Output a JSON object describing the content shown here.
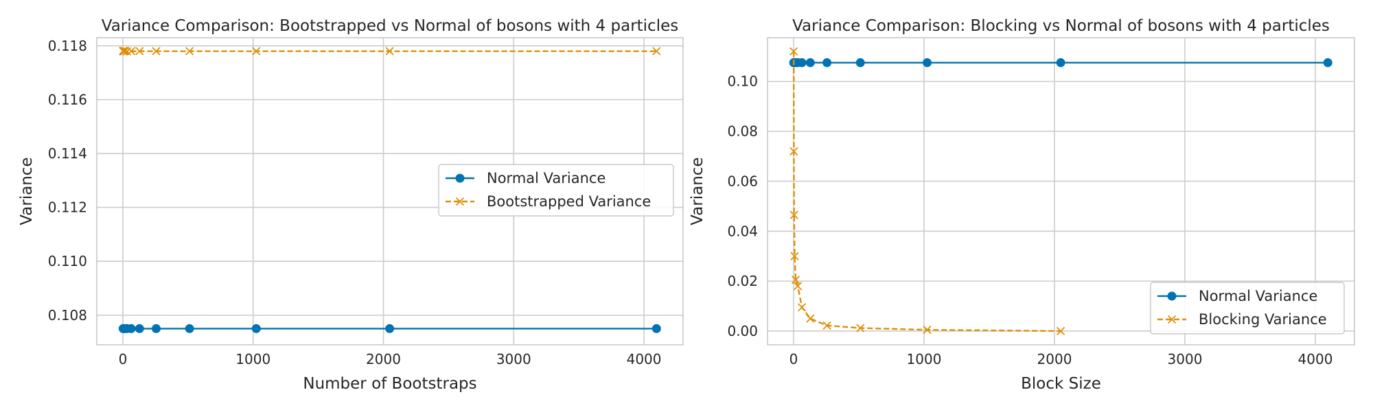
{
  "colors": {
    "normal": "#0173b2",
    "alt": "#de8f05",
    "grid": "#cccccc",
    "frame": "#c8c8c8",
    "background": "#ffffff"
  },
  "chart_data": [
    {
      "type": "line",
      "title": "Variance Comparison: Bootstrapped vs Normal of bosons with 4 particles",
      "xlabel": "Number of Bootstraps",
      "ylabel": "Variance",
      "xlim": [
        -200,
        4300
      ],
      "ylim": [
        0.1069,
        0.1183
      ],
      "xticks": [
        0,
        1000,
        2000,
        3000,
        4000
      ],
      "xtick_labels": [
        "0",
        "1000",
        "2000",
        "3000",
        "4000"
      ],
      "yticks": [
        0.108,
        0.11,
        0.112,
        0.114,
        0.116,
        0.118
      ],
      "ytick_labels": [
        "0.108",
        "0.110",
        "0.112",
        "0.114",
        "0.116",
        "0.118"
      ],
      "grid": true,
      "legend_position": "center-right",
      "series": [
        {
          "name": "Normal Variance",
          "style": "solid",
          "marker": "circle",
          "color": "#0173b2",
          "x": [
            2,
            4,
            8,
            16,
            32,
            64,
            128,
            256,
            512,
            1024,
            2048,
            4096
          ],
          "y": [
            0.1075,
            0.1075,
            0.1075,
            0.1075,
            0.1075,
            0.1075,
            0.1075,
            0.1075,
            0.1075,
            0.1075,
            0.1075,
            0.1075
          ]
        },
        {
          "name": "Bootstrapped Variance",
          "style": "dashed",
          "marker": "x",
          "color": "#de8f05",
          "x": [
            2,
            4,
            8,
            16,
            32,
            64,
            128,
            256,
            512,
            1024,
            2048,
            4096
          ],
          "y": [
            0.11781,
            0.11779,
            0.1178,
            0.11781,
            0.11779,
            0.1178,
            0.1178,
            0.1178,
            0.1178,
            0.1178,
            0.1178,
            0.1178
          ]
        }
      ]
    },
    {
      "type": "line",
      "title": "Variance Comparison: Blocking vs Normal of bosons with 4 particles",
      "xlabel": "Block Size",
      "ylabel": "Variance",
      "xlim": [
        -200,
        4300
      ],
      "ylim": [
        -0.0055,
        0.1175
      ],
      "xticks": [
        0,
        1000,
        2000,
        3000,
        4000
      ],
      "xtick_labels": [
        "0",
        "1000",
        "2000",
        "3000",
        "4000"
      ],
      "yticks": [
        0.0,
        0.02,
        0.04,
        0.06,
        0.08,
        0.1
      ],
      "ytick_labels": [
        "0.00",
        "0.02",
        "0.04",
        "0.06",
        "0.08",
        "0.10"
      ],
      "grid": true,
      "legend_position": "lower-right",
      "series": [
        {
          "name": "Normal Variance",
          "style": "solid",
          "marker": "circle",
          "color": "#0173b2",
          "x": [
            1,
            2,
            4,
            8,
            16,
            32,
            64,
            128,
            256,
            512,
            1024,
            2048,
            4096
          ],
          "y": [
            0.1075,
            0.1075,
            0.1075,
            0.1075,
            0.1075,
            0.1075,
            0.1075,
            0.1075,
            0.1075,
            0.1075,
            0.1075,
            0.1075,
            0.1075
          ]
        },
        {
          "name": "Blocking Variance",
          "style": "dashed",
          "marker": "x",
          "color": "#de8f05",
          "x": [
            1,
            2,
            4,
            8,
            16,
            32,
            64,
            128,
            256,
            512,
            1024,
            2048
          ],
          "y": [
            0.112,
            0.072,
            0.0465,
            0.03,
            0.0205,
            0.018,
            0.0095,
            0.005,
            0.0022,
            0.0012,
            0.0005,
            0.0
          ]
        }
      ]
    }
  ]
}
